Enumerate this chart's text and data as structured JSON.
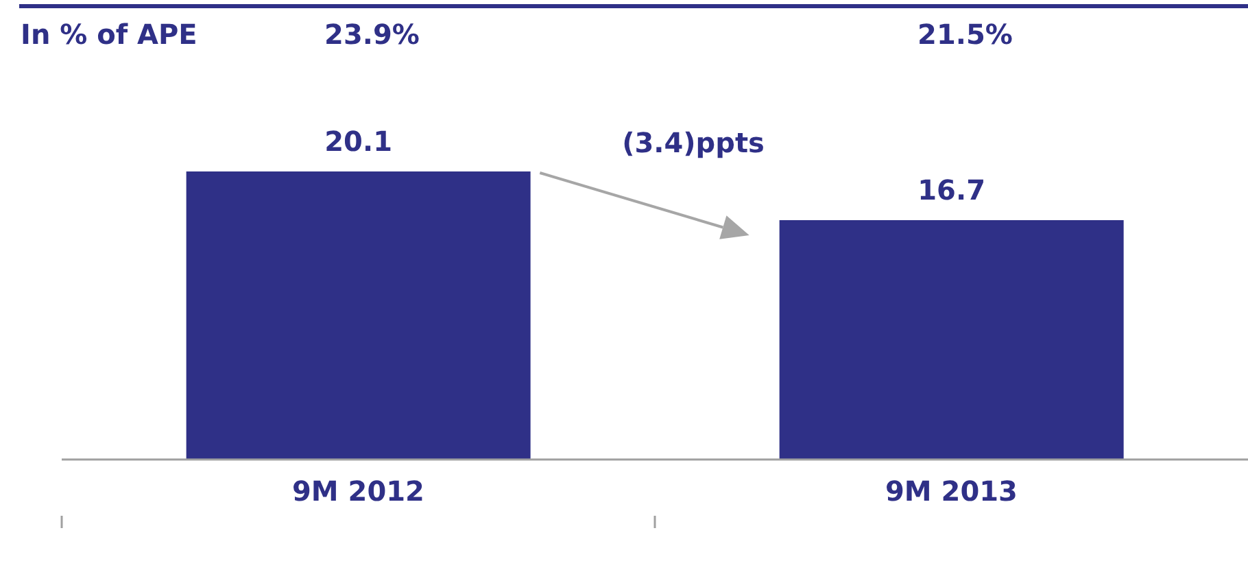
{
  "chart_data": {
    "type": "bar",
    "categories": [
      "9M 2012",
      "9M 2013"
    ],
    "values": [
      20.1,
      16.7
    ],
    "color": "#2f3087",
    "data_labels": true,
    "annotations": [
      "In % of APE",
      "23.9%",
      "21.5%",
      "(3.4)ppts"
    ]
  }
}
